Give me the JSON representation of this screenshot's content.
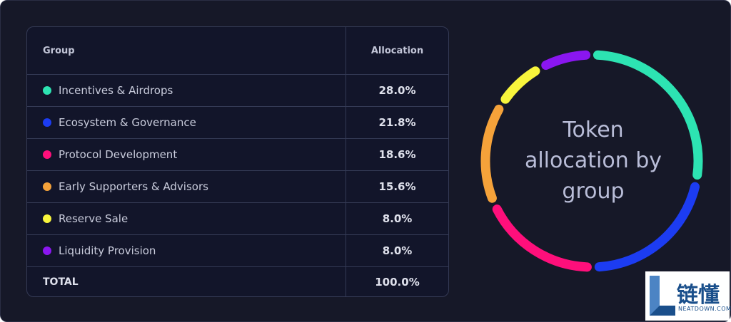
{
  "table": {
    "header_group": "Group",
    "header_allocation": "Allocation",
    "total_label": "TOTAL",
    "total_value": "100.0%"
  },
  "chart_data": {
    "type": "pie",
    "title": "Token allocation by group",
    "categories": [
      "Incentives & Airdrops",
      "Ecosystem & Governance",
      "Protocol Development",
      "Early Supporters & Advisors",
      "Reserve Sale",
      "Liquidity Provision"
    ],
    "values": [
      28.0,
      21.8,
      18.6,
      15.6,
      8.0,
      8.0
    ],
    "value_labels": [
      "28.0%",
      "21.8%",
      "18.6%",
      "15.6%",
      "8.0%",
      "8.0%"
    ],
    "colors": [
      "#2de3b2",
      "#1c3cf2",
      "#ff0f7b",
      "#f5a23a",
      "#f8f53c",
      "#8a16f0"
    ]
  },
  "logo": {
    "cn_text": "链懂",
    "en_text": "NEATDOWN.COM"
  }
}
